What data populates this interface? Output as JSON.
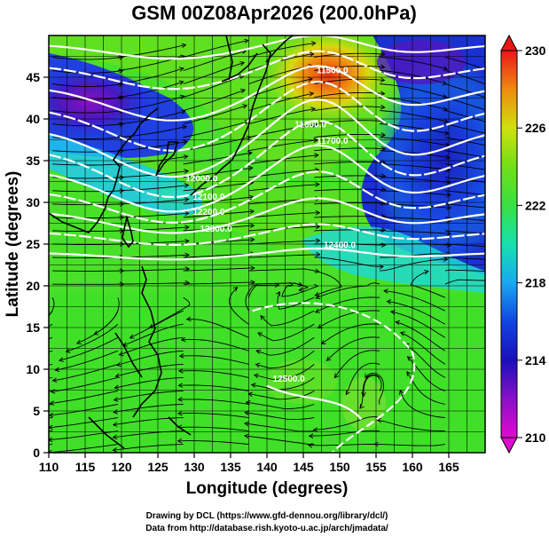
{
  "title": "GSM 00Z08Apr2026 (200.0hPa)",
  "x_axis": {
    "label": "Longitude (degrees)",
    "min": 110,
    "max": 170,
    "ticks": [
      "110",
      "115",
      "120",
      "125",
      "130",
      "135",
      "140",
      "145",
      "150",
      "155",
      "160",
      "165"
    ]
  },
  "y_axis": {
    "label": "Latitude  (degrees)",
    "min": 0,
    "max": 50,
    "ticks": [
      "0",
      "5",
      "10",
      "15",
      "20",
      "25",
      "30",
      "35",
      "40",
      "45"
    ]
  },
  "colorbar": {
    "min": 210,
    "max": 230,
    "ticks": [
      "210",
      "214",
      "218",
      "222",
      "226",
      "230"
    ]
  },
  "contour_labels": [
    {
      "text": "11500.0",
      "lon": 149,
      "lat": 45.5
    },
    {
      "text": "11600.0",
      "lon": 146,
      "lat": 39
    },
    {
      "text": "11700.0",
      "lon": 149,
      "lat": 37
    },
    {
      "text": "12000.0",
      "lon": 131,
      "lat": 32.5
    },
    {
      "text": "12100.0",
      "lon": 132,
      "lat": 30.3
    },
    {
      "text": "12200.0",
      "lon": 132,
      "lat": 28.5
    },
    {
      "text": "12300.0",
      "lon": 133,
      "lat": 26.5
    },
    {
      "text": "12400.0",
      "lon": 150,
      "lat": 24.5
    },
    {
      "text": "12500.0",
      "lon": 143,
      "lat": 8.5
    }
  ],
  "credits": {
    "line1": "Drawing by DCL (https://www.gfd-dennou.org/library/dcl/)",
    "line2": "Data from http://database.rish.kyoto-u.ac.jp/arch/jmadata/"
  },
  "colors": {
    "background": "#ffffff",
    "contour": "#ffffff",
    "coast": "#000000",
    "streamline": "#000000"
  }
}
